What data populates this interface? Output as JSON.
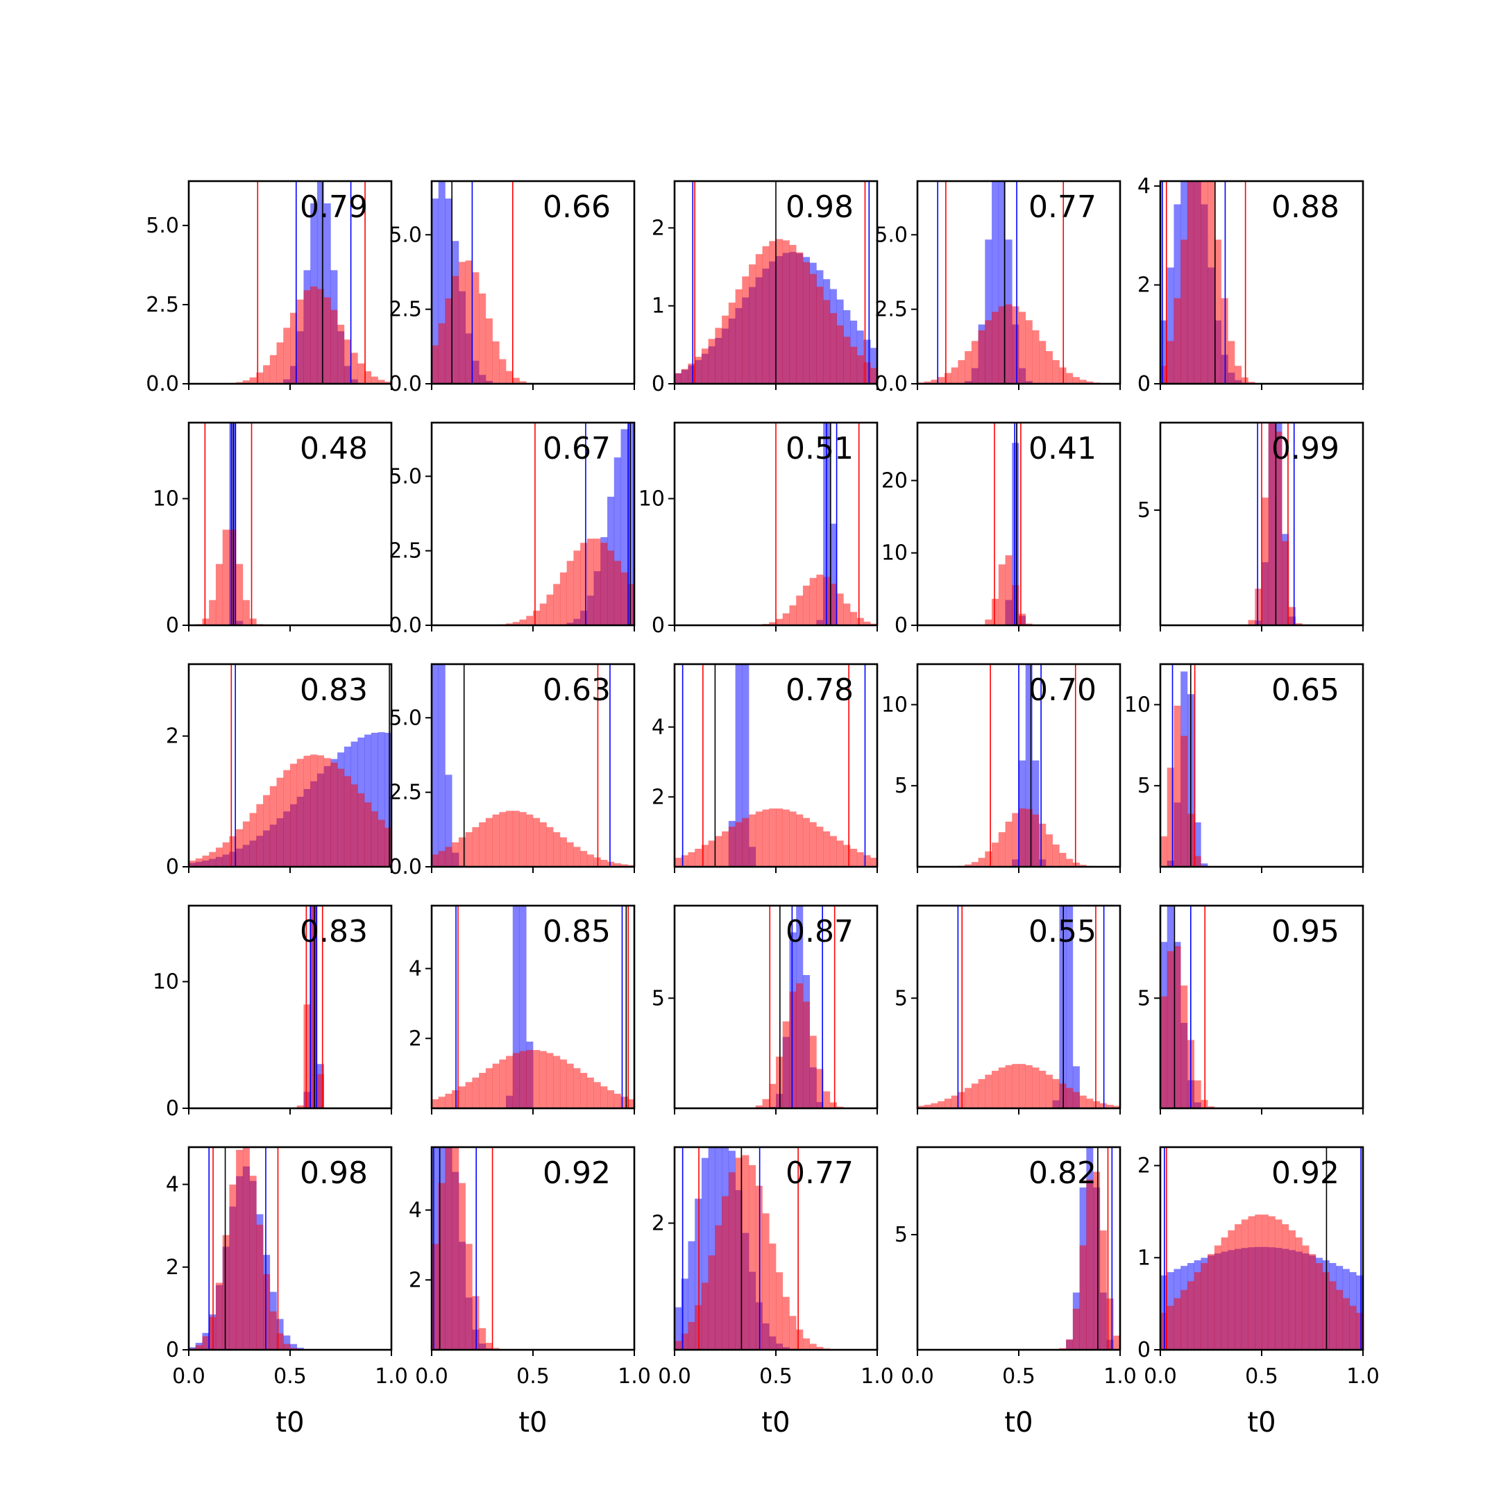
{
  "chart_data": {
    "type": "histogram-grid",
    "rows": 5,
    "cols": 5,
    "xlim": [
      0,
      1
    ],
    "xticks": [
      "0.0",
      "0.5",
      "1.0"
    ],
    "xlabel": "t0",
    "colors": {
      "blue": "#0000ff",
      "red": "#ff0000",
      "median": "#000000"
    },
    "panels": [
      {
        "score": "0.79",
        "ylim": [
          0,
          6.4
        ],
        "yticks": [
          "0.0",
          "2.5",
          "5.0"
        ],
        "blue": {
          "center": 0.65,
          "width": 0.06
        },
        "red": {
          "center": 0.62,
          "width": 0.13
        },
        "blue_lines": [
          0.53,
          0.8
        ],
        "red_lines": [
          0.34,
          0.87
        ],
        "median": 0.66
      },
      {
        "score": "0.66",
        "ylim": [
          0,
          6.8
        ],
        "yticks": [
          "0.0",
          "2.5",
          "5.0"
        ],
        "blue": {
          "center": 0.05,
          "width": 0.08
        },
        "red": {
          "center": 0.17,
          "width": 0.1
        },
        "blue_lines": [
          0.0,
          0.2
        ],
        "red_lines": [
          0.4
        ],
        "median": 0.1
      },
      {
        "score": "0.98",
        "ylim": [
          0,
          2.6
        ],
        "yticks": [
          "0",
          "1",
          "2"
        ],
        "blue": {
          "center": 0.58,
          "width": 0.25
        },
        "red": {
          "center": 0.52,
          "width": 0.22
        },
        "blue_lines": [
          0.09,
          0.96
        ],
        "red_lines": [
          0.1,
          0.94
        ],
        "median": 0.5
      },
      {
        "score": "0.77",
        "ylim": [
          0,
          6.8
        ],
        "yticks": [
          "0.0",
          "2.5",
          "5.0"
        ],
        "blue": {
          "center": 0.4,
          "width": 0.05
        },
        "red": {
          "center": 0.45,
          "width": 0.15
        },
        "blue_lines": [
          0.1,
          0.49
        ],
        "red_lines": [
          0.14,
          0.72
        ],
        "median": 0.43
      },
      {
        "score": "0.88",
        "ylim": [
          0,
          4.1
        ],
        "yticks": [
          "0",
          "2",
          "4"
        ],
        "blue": {
          "center": 0.15,
          "width": 0.08
        },
        "red": {
          "center": 0.2,
          "width": 0.08
        },
        "blue_lines": [
          0.01,
          0.32
        ],
        "red_lines": [
          0.03,
          0.42
        ],
        "median": 0.27
      },
      {
        "score": "0.48",
        "ylim": [
          0,
          16
        ],
        "yticks": [
          "0",
          "10"
        ],
        "blue": {
          "center": 0.22,
          "width": 0.01
        },
        "red": {
          "center": 0.2,
          "width": 0.05
        },
        "blue_lines": [
          0.21,
          0.23
        ],
        "red_lines": [
          0.08,
          0.31
        ],
        "median": 0.22
      },
      {
        "score": "0.67",
        "ylim": [
          0,
          6.8
        ],
        "yticks": [
          "0.0",
          "2.5",
          "5.0"
        ],
        "blue": {
          "center": 0.98,
          "width": 0.1
        },
        "red": {
          "center": 0.8,
          "width": 0.15
        },
        "blue_lines": [
          0.76,
          0.97
        ],
        "red_lines": [
          0.51
        ],
        "median": 0.98
      },
      {
        "score": "0.51",
        "ylim": [
          0,
          16
        ],
        "yticks": [
          "0",
          "10"
        ],
        "blue": {
          "center": 0.76,
          "width": 0.015
        },
        "red": {
          "center": 0.72,
          "width": 0.1
        },
        "blue_lines": [
          0.75,
          0.8
        ],
        "red_lines": [
          0.5,
          0.91
        ],
        "median": 0.77
      },
      {
        "score": "0.41",
        "ylim": [
          0,
          28
        ],
        "yticks": [
          "0",
          "10",
          "20"
        ],
        "blue": {
          "center": 0.48,
          "width": 0.015
        },
        "red": {
          "center": 0.44,
          "width": 0.04
        },
        "blue_lines": [
          0.48,
          0.49
        ],
        "red_lines": [
          0.38,
          0.51
        ],
        "median": 0.49
      },
      {
        "score": "0.99",
        "ylim": [
          0,
          8.8
        ],
        "yticks": [
          "5"
        ],
        "blue": {
          "center": 0.57,
          "width": 0.03
        },
        "red": {
          "center": 0.56,
          "width": 0.04
        },
        "blue_lines": [
          0.48,
          0.66
        ],
        "red_lines": [
          0.5,
          0.63
        ],
        "median": 0.57
      },
      {
        "score": "0.83",
        "ylim": [
          0,
          3.1
        ],
        "yticks": [
          "0",
          "2"
        ],
        "blue": {
          "center": 0.95,
          "width": 0.35
        },
        "red": {
          "center": 0.62,
          "width": 0.25
        },
        "blue_lines": [
          0.23,
          1.0
        ],
        "red_lines": [
          0.21
        ],
        "median": 0.99
      },
      {
        "score": "0.63",
        "ylim": [
          0,
          6.8
        ],
        "yticks": [
          "0.0",
          "2.5",
          "5.0"
        ],
        "blue": {
          "center": 0.01,
          "width": 0.04
        },
        "red": {
          "center": 0.4,
          "width": 0.22
        },
        "blue_lines": [
          0.0,
          0.88
        ],
        "red_lines": [
          0.82
        ],
        "median": 0.16
      },
      {
        "score": "0.78",
        "ylim": [
          0,
          5.8
        ],
        "yticks": [
          "2",
          "4"
        ],
        "blue": {
          "center": 0.33,
          "width": 0.02
        },
        "red": {
          "center": 0.5,
          "width": 0.25
        },
        "blue_lines": [
          0.04,
          0.94
        ],
        "red_lines": [
          0.14,
          0.86
        ],
        "median": 0.2
      },
      {
        "score": "0.70",
        "ylim": [
          0,
          12.5
        ],
        "yticks": [
          "5",
          "10"
        ],
        "blue": {
          "center": 0.55,
          "width": 0.025
        },
        "red": {
          "center": 0.53,
          "width": 0.11
        },
        "blue_lines": [
          0.5,
          0.61
        ],
        "red_lines": [
          0.36,
          0.78
        ],
        "median": 0.56
      },
      {
        "score": "0.65",
        "ylim": [
          0,
          12.5
        ],
        "yticks": [
          "5",
          "10"
        ],
        "blue": {
          "center": 0.13,
          "width": 0.03
        },
        "red": {
          "center": 0.09,
          "width": 0.04
        },
        "blue_lines": [
          0.06
        ],
        "red_lines": [
          0.17
        ],
        "median": 0.15
      },
      {
        "score": "0.83",
        "ylim": [
          0,
          16
        ],
        "yticks": [
          "0",
          "10"
        ],
        "blue": {
          "center": 0.62,
          "width": 0.015
        },
        "red": {
          "center": 0.61,
          "width": 0.02
        },
        "blue_lines": [
          0.6,
          0.63
        ],
        "red_lines": [
          0.58,
          0.66
        ],
        "median": 0.62
      },
      {
        "score": "0.85",
        "ylim": [
          0,
          5.8
        ],
        "yticks": [
          "2",
          "4"
        ],
        "blue": {
          "center": 0.44,
          "width": 0.02
        },
        "red": {
          "center": 0.5,
          "width": 0.25
        },
        "blue_lines": [
          0.12,
          0.94
        ],
        "red_lines": [
          0.13,
          0.97
        ],
        "median": 0.96
      },
      {
        "score": "0.87",
        "ylim": [
          0,
          9.2
        ],
        "yticks": [
          "5"
        ],
        "blue": {
          "center": 0.61,
          "width": 0.04
        },
        "red": {
          "center": 0.61,
          "width": 0.07
        },
        "blue_lines": [
          0.58,
          0.73
        ],
        "red_lines": [
          0.47,
          0.79
        ],
        "median": 0.52
      },
      {
        "score": "0.55",
        "ylim": [
          0,
          9.2
        ],
        "yticks": [
          "5"
        ],
        "blue": {
          "center": 0.74,
          "width": 0.02
        },
        "red": {
          "center": 0.5,
          "width": 0.2
        },
        "blue_lines": [
          0.2,
          0.92
        ],
        "red_lines": [
          0.22,
          0.88
        ],
        "median": 0.72
      },
      {
        "score": "0.95",
        "ylim": [
          0,
          9.2
        ],
        "yticks": [
          "5"
        ],
        "blue": {
          "center": 0.05,
          "width": 0.05
        },
        "red": {
          "center": 0.07,
          "width": 0.06
        },
        "blue_lines": [
          0.15
        ],
        "red_lines": [
          0.22
        ],
        "median": 0.07
      },
      {
        "score": "0.98",
        "ylim": [
          0,
          4.9
        ],
        "yticks": [
          "0",
          "2",
          "4"
        ],
        "blue": {
          "center": 0.28,
          "width": 0.09
        },
        "red": {
          "center": 0.27,
          "width": 0.08
        },
        "blue_lines": [
          0.1,
          0.38
        ],
        "red_lines": [
          0.12,
          0.44
        ],
        "median": 0.18
      },
      {
        "score": "0.92",
        "ylim": [
          0,
          5.8
        ],
        "yticks": [
          "2",
          "4"
        ],
        "blue": {
          "center": 0.06,
          "width": 0.07
        },
        "red": {
          "center": 0.1,
          "width": 0.07
        },
        "blue_lines": [
          0.01,
          0.22
        ],
        "red_lines": [
          0.3
        ],
        "median": 0.04
      },
      {
        "score": "0.77",
        "ylim": [
          0,
          3.2
        ],
        "yticks": [
          "2"
        ],
        "blue": {
          "center": 0.22,
          "width": 0.11
        },
        "red": {
          "center": 0.34,
          "width": 0.13
        },
        "blue_lines": [
          0.04,
          0.42
        ],
        "red_lines": [
          0.12,
          0.61
        ],
        "median": 0.33
      },
      {
        "score": "0.82",
        "ylim": [
          0,
          8.8
        ],
        "yticks": [
          "5"
        ],
        "blue": {
          "center": 0.85,
          "width": 0.04
        },
        "red": {
          "center": 0.87,
          "width": 0.05
        },
        "blue_lines": [
          0.96
        ],
        "red_lines": [
          0.94
        ],
        "median": 0.89
      },
      {
        "score": "0.92",
        "ylim": [
          0,
          2.2
        ],
        "yticks": [
          "0",
          "1",
          "2"
        ],
        "blue": {
          "center": 0.5,
          "width": 0.6
        },
        "red": {
          "center": 0.5,
          "width": 0.3
        },
        "blue_lines": [
          0.02,
          0.99
        ],
        "red_lines": [
          0.03
        ],
        "median": 0.82
      }
    ]
  }
}
